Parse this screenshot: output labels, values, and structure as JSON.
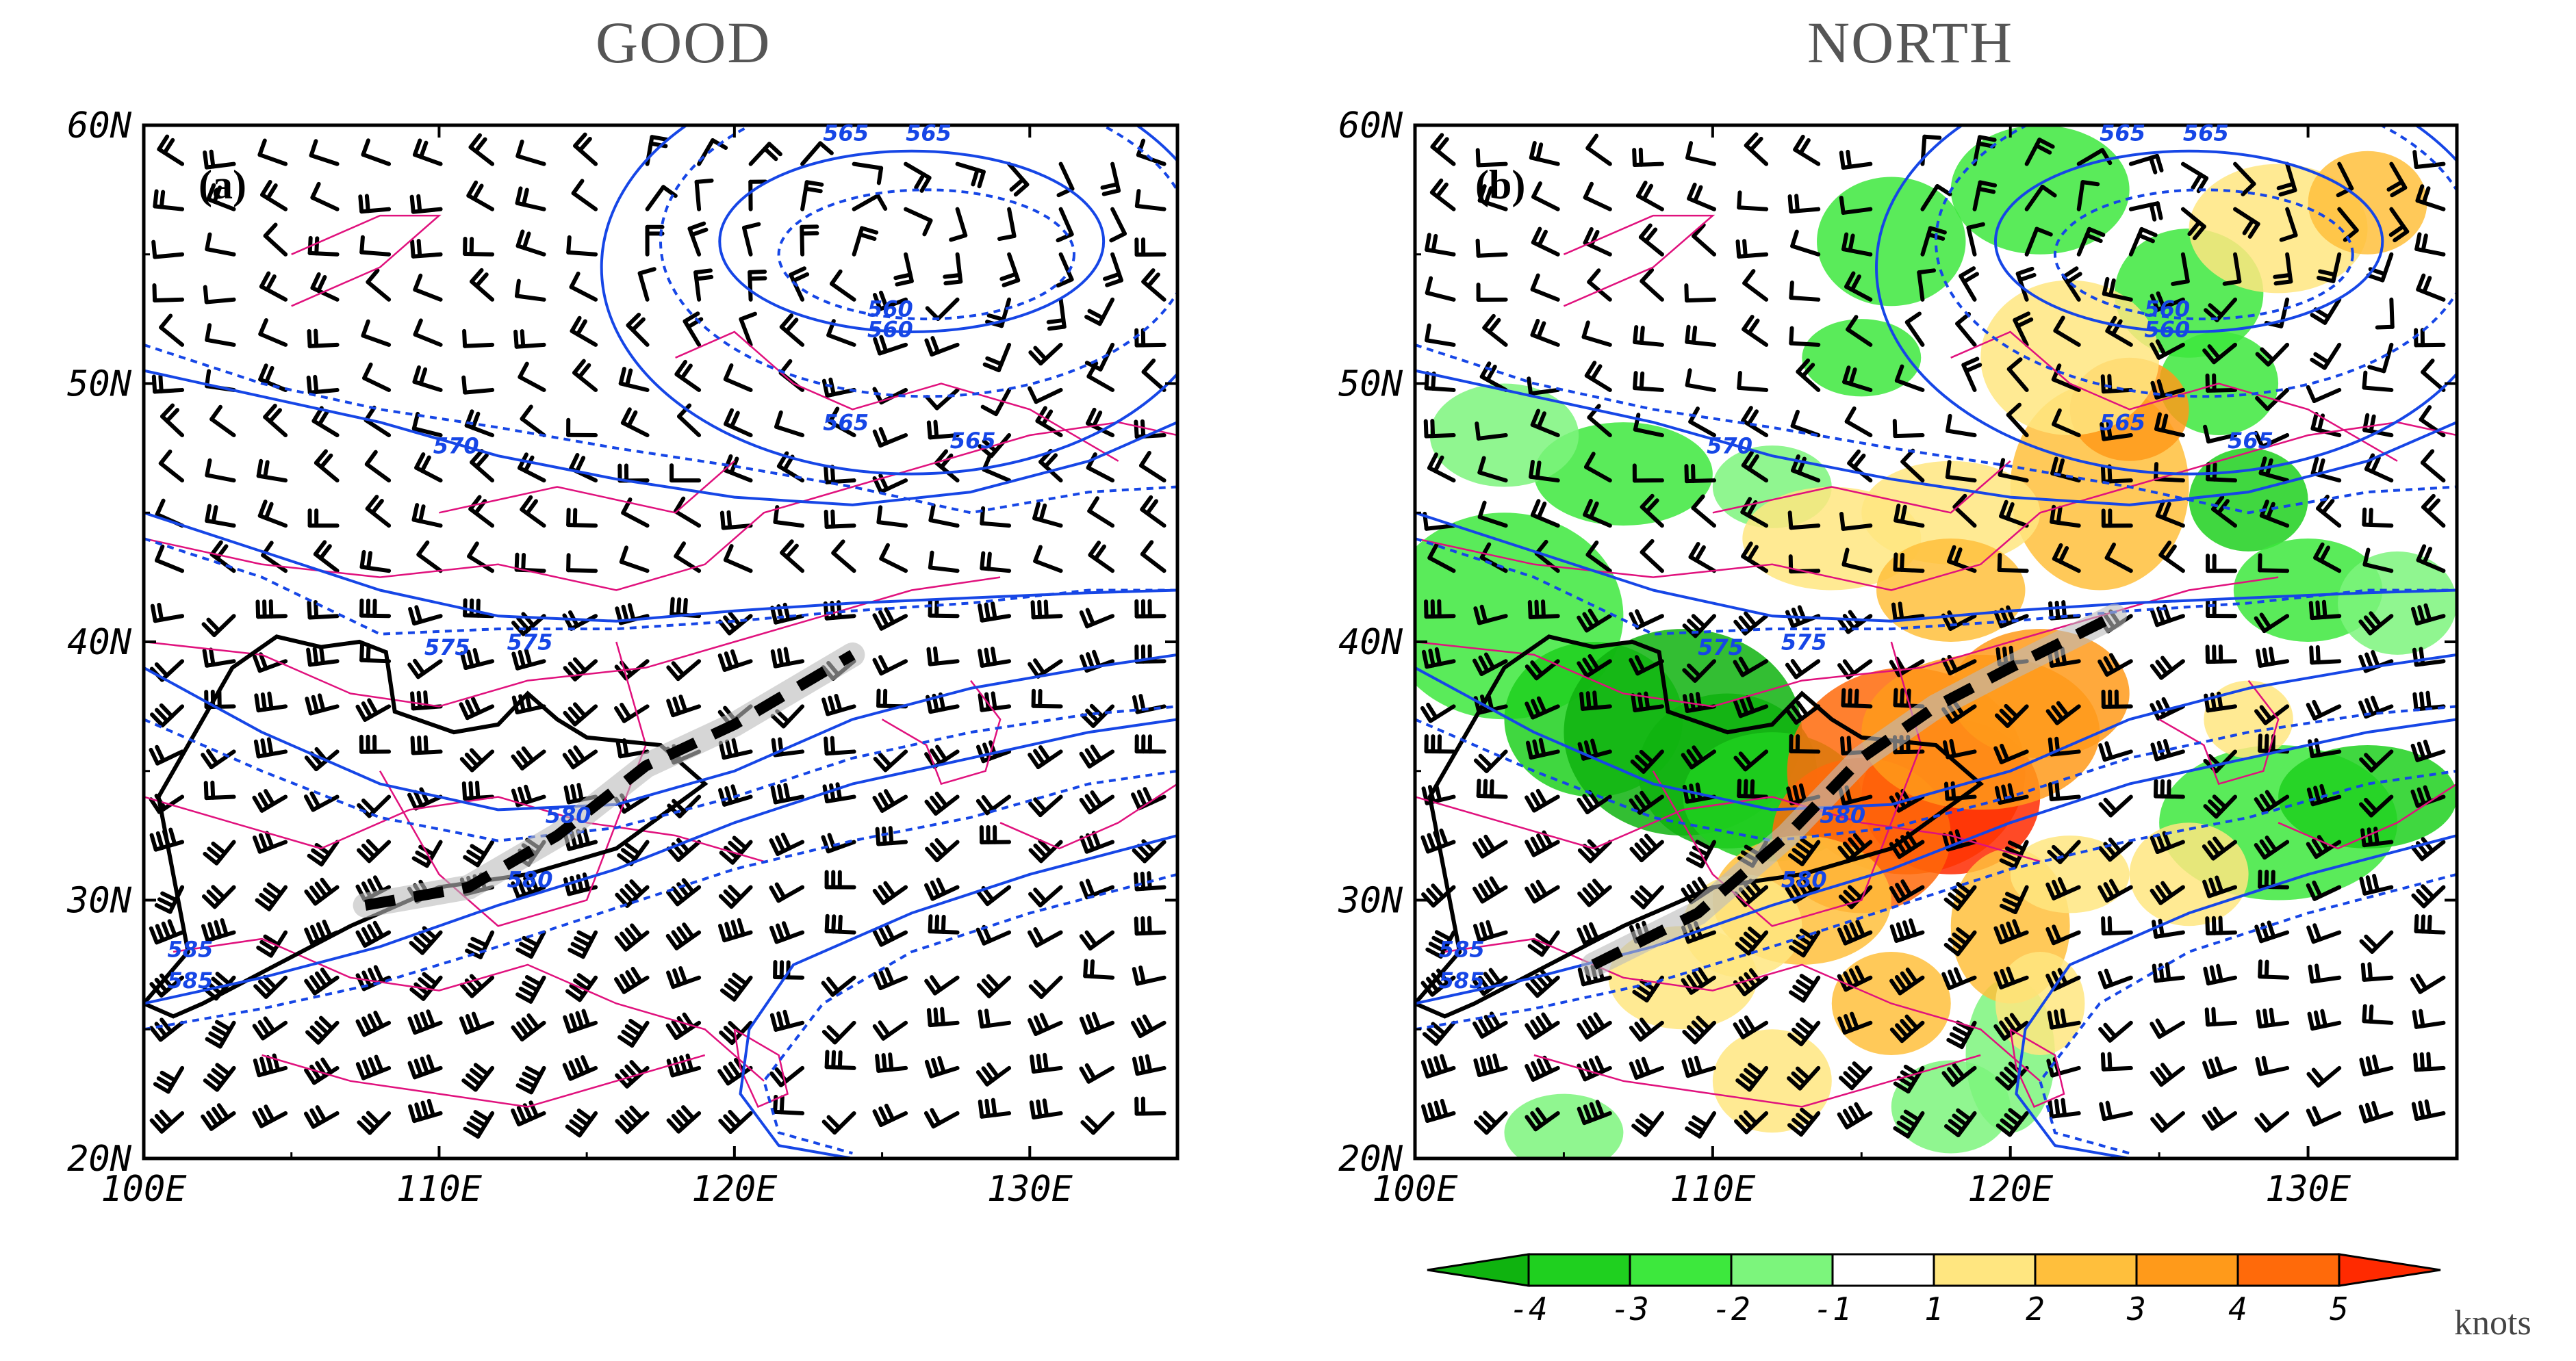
{
  "panels": [
    {
      "id": "a",
      "title": "GOOD",
      "tag": "(a)",
      "shaded": false,
      "contour_labels": [
        "565",
        "565",
        "560",
        "560",
        "570",
        "565",
        "565",
        "575",
        "575",
        "580",
        "580",
        "585",
        "585"
      ]
    },
    {
      "id": "b",
      "title": "NORTH",
      "tag": "(b)",
      "shaded": true,
      "contour_labels": [
        "565",
        "565",
        "560",
        "560",
        "570",
        "565",
        "565",
        "575",
        "575",
        "580",
        "580",
        "585",
        "585"
      ]
    }
  ],
  "map": {
    "lat_ticks": [
      "60N",
      "50N",
      "40N",
      "30N",
      "20N"
    ],
    "lon_ticks": [
      "100E",
      "110E",
      "120E",
      "130E"
    ],
    "lat_range": [
      20,
      60
    ],
    "lon_range": [
      100,
      135
    ],
    "wind_barbs": "black wind barbs on a regular grid",
    "contours": {
      "solid": "blue solid geopotential height",
      "dashed": "blue dashed geopotential height"
    },
    "borders_color": "#e0117d",
    "trough_line": "thick black dashed line with gray halo"
  },
  "colorbar": {
    "labels": [
      "-4",
      "-3",
      "-2",
      "-1",
      "1",
      "2",
      "3",
      "4",
      "5"
    ],
    "colors": [
      "#0fb30f",
      "#1fd01f",
      "#3de83d",
      "#7cf57c",
      "#ffffff",
      "#ffe680",
      "#ffbf3c",
      "#ff9a1a",
      "#ff6a0a",
      "#ff2a00"
    ],
    "units": "knots"
  }
}
